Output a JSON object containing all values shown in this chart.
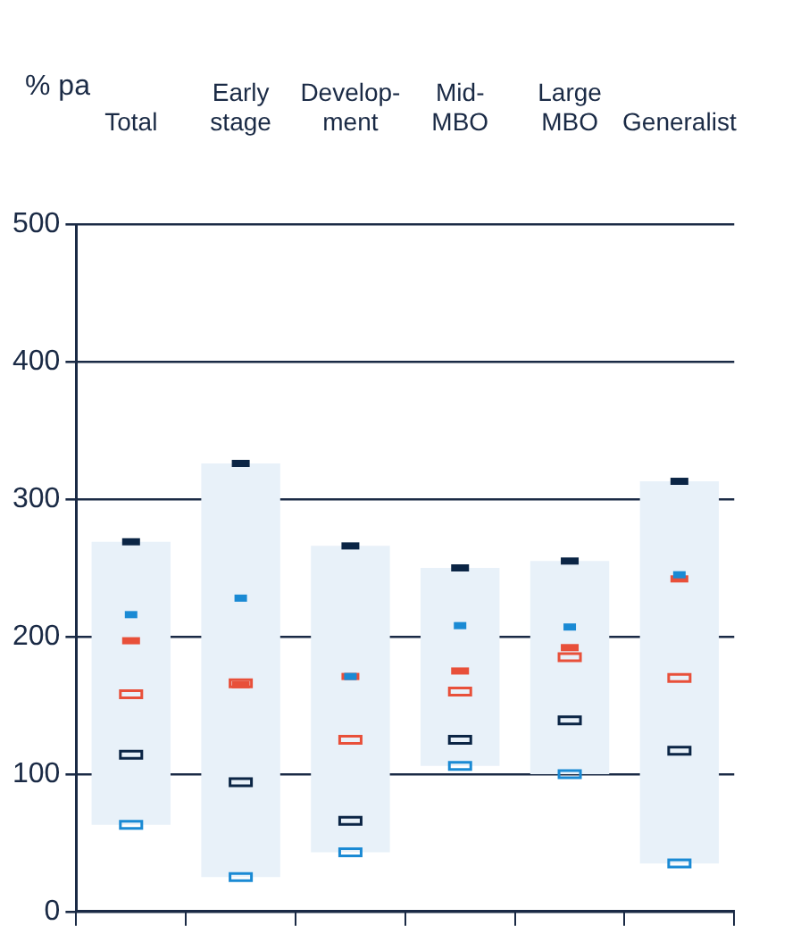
{
  "chart_data": {
    "type": "bar",
    "ylabel": "% pa",
    "categories": [
      "Total",
      "Early stage",
      "Develop-ment",
      "Mid-MBO",
      "Large MBO",
      "Generalist"
    ],
    "ylim": [
      0,
      500
    ],
    "yticks": [
      0,
      100,
      200,
      300,
      400,
      500
    ],
    "grid": "y",
    "legend": false,
    "series": [
      {
        "type": "bar",
        "color": "#e8f1f9",
        "base": [
          63,
          25,
          43,
          106,
          100,
          35
        ],
        "values": [
          206,
          301,
          223,
          144,
          155,
          278
        ]
      },
      {
        "type": "scatter",
        "color": "#0b2545",
        "line_style": "solid",
        "x": [
          "Total",
          "Early stage",
          "Develop-ment",
          "Mid-MBO",
          "Large MBO",
          "Generalist"
        ],
        "values": [
          269,
          326,
          266,
          250,
          255,
          313
        ]
      },
      {
        "type": "scatter",
        "color": "#1a8ad4",
        "line_style": "solid",
        "x": [
          "Total",
          "Early stage",
          "Develop-ment",
          "Mid-MBO",
          "Large MBO",
          "Generalist"
        ],
        "values": [
          216,
          228,
          171,
          208,
          207,
          245
        ]
      },
      {
        "type": "scatter",
        "color": "#e8503a",
        "line_style": "solid",
        "x": [
          "Total",
          "Early stage",
          "Develop-ment",
          "Mid-MBO",
          "Large MBO",
          "Generalist"
        ],
        "values": [
          197,
          165,
          171,
          175,
          192,
          242
        ]
      },
      {
        "type": "scatter",
        "color": "#e8503a",
        "line_style": "dotted",
        "x": [
          "Total",
          "Early stage",
          "Develop-ment",
          "Mid-MBO",
          "Large MBO",
          "Generalist"
        ],
        "values": [
          158,
          166,
          125,
          160,
          185,
          170
        ]
      },
      {
        "type": "scatter",
        "color": "#0b2545",
        "line_style": "dotted",
        "x": [
          "Total",
          "Early stage",
          "Develop-ment",
          "Mid-MBO",
          "Large MBO",
          "Generalist"
        ],
        "values": [
          114,
          94,
          66,
          125,
          139,
          117
        ]
      },
      {
        "type": "scatter",
        "color": "#1a8ad4",
        "line_style": "dotted",
        "x": [
          "Total",
          "Early stage",
          "Develop-ment",
          "Mid-MBO",
          "Large MBO",
          "Generalist"
        ],
        "values": [
          63,
          25,
          43,
          106,
          100,
          35
        ]
      }
    ]
  }
}
